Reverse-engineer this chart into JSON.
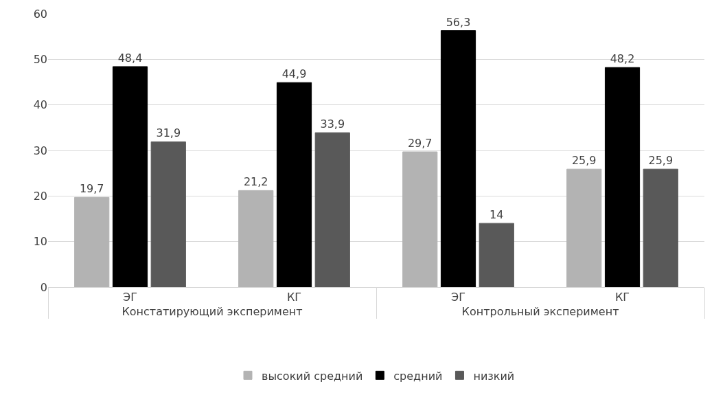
{
  "chart_data": {
    "type": "bar",
    "categories": [
      "ЭГ",
      "КГ",
      "ЭГ",
      "КГ"
    ],
    "annotations": [
      "Констатирующий эксперимент",
      "Контрольный эксперимент"
    ],
    "series": [
      {
        "name": "высокий средний",
        "color": "#b3b3b3",
        "values": [
          19.7,
          21.2,
          29.7,
          25.9
        ],
        "value_labels": [
          "19,7",
          "21,2",
          "29,7",
          "25,9"
        ]
      },
      {
        "name": "средний",
        "color": "#000000",
        "values": [
          48.4,
          44.9,
          56.3,
          48.2
        ],
        "value_labels": [
          "48,4",
          "44,9",
          "56,3",
          "48,2"
        ]
      },
      {
        "name": "низкий",
        "color": "#595959",
        "values": [
          31.9,
          33.9,
          14,
          25.9
        ],
        "value_labels": [
          "31,9",
          "33,9",
          "14",
          "25,9"
        ]
      }
    ],
    "ylim": [
      0,
      60
    ],
    "yticks": [
      0,
      10,
      20,
      30,
      40,
      50,
      60
    ],
    "grid": "y",
    "legend": "bottom"
  }
}
